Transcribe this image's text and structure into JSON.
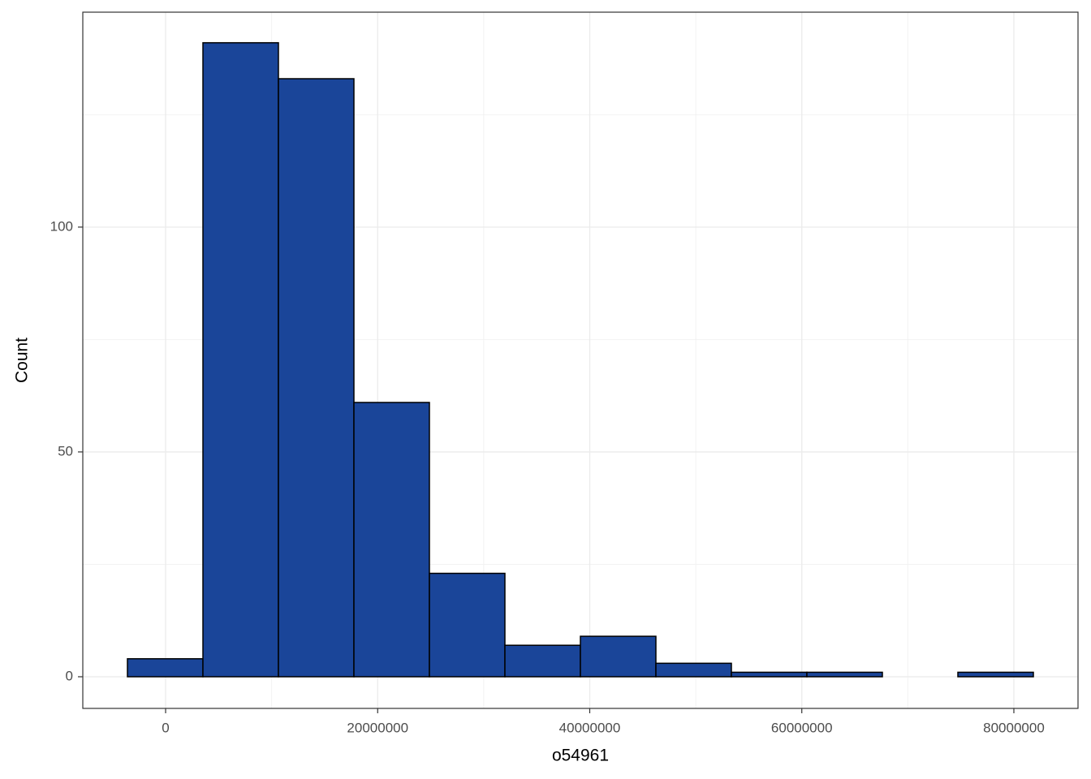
{
  "chart_data": {
    "type": "histogram",
    "x_label": "o54961",
    "y_label": "Count",
    "bins": [
      -3600000,
      3520000,
      10640000,
      17760000,
      24880000,
      32000000,
      39120000,
      46240000,
      53360000,
      60480000,
      67600000,
      74720000,
      81840000
    ],
    "counts": [
      4,
      141,
      133,
      61,
      23,
      7,
      9,
      3,
      1,
      1,
      0,
      1
    ],
    "color": "#1a4599",
    "edge_color": "#000000",
    "xlim": [
      -7810000,
      86050000
    ],
    "ylim": [
      -7.04,
      147.8
    ],
    "xticks": [
      0,
      20000000,
      40000000,
      60000000,
      80000000
    ],
    "yticks": [
      0,
      50,
      100
    ],
    "x_minor_grid": [
      10000000,
      30000000,
      50000000,
      70000000
    ],
    "y_minor_grid": [
      25,
      75,
      125
    ],
    "grid": true
  }
}
